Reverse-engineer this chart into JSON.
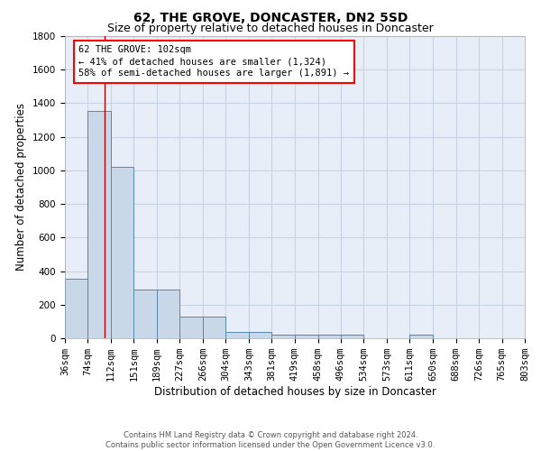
{
  "title": "62, THE GROVE, DONCASTER, DN2 5SD",
  "subtitle": "Size of property relative to detached houses in Doncaster",
  "xlabel": "Distribution of detached houses by size in Doncaster",
  "ylabel": "Number of detached properties",
  "bin_edges": [
    36,
    74,
    112,
    151,
    189,
    227,
    266,
    304,
    343,
    381,
    419,
    458,
    496,
    534,
    573,
    611,
    650,
    688,
    726,
    765,
    803
  ],
  "bar_heights": [
    355,
    1355,
    1020,
    290,
    290,
    130,
    130,
    40,
    40,
    20,
    20,
    20,
    20,
    0,
    0,
    20,
    0,
    0,
    0,
    0
  ],
  "bar_color": "#c8d8e8",
  "bar_edge_color": "#5588aa",
  "grid_color": "#c8d4e4",
  "background_color": "#e8eef8",
  "red_line_x": 102,
  "annotation_line1": "62 THE GROVE: 102sqm",
  "annotation_line2": "← 41% of detached houses are smaller (1,324)",
  "annotation_line3": "58% of semi-detached houses are larger (1,891) →",
  "ylim": [
    0,
    1800
  ],
  "yticks": [
    0,
    200,
    400,
    600,
    800,
    1000,
    1200,
    1400,
    1600,
    1800
  ],
  "footer_text": "Contains HM Land Registry data © Crown copyright and database right 2024.\nContains public sector information licensed under the Open Government Licence v3.0.",
  "title_fontsize": 10,
  "subtitle_fontsize": 9,
  "xlabel_fontsize": 8.5,
  "ylabel_fontsize": 8.5,
  "tick_fontsize": 7.5,
  "annotation_fontsize": 7.5,
  "footer_fontsize": 6
}
